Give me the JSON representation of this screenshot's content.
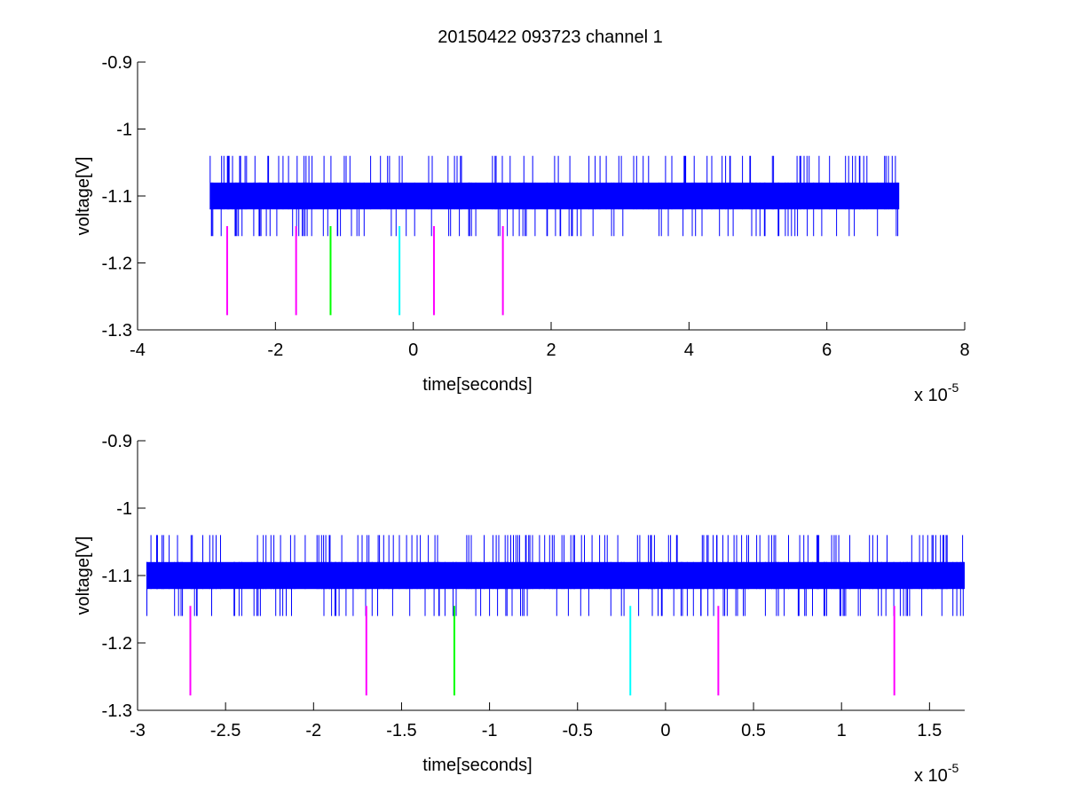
{
  "figure": {
    "title": "20150422 093723 channel 1"
  },
  "chart_data": [
    {
      "type": "line",
      "title": "20150422 093723 channel 1",
      "xlabel": "time[seconds]",
      "ylabel": "voltage[V]",
      "x_multiplier": "x 10",
      "x_exponent": "-5",
      "xlim": [
        -4,
        8
      ],
      "ylim": [
        -1.3,
        -0.9
      ],
      "xticks": [
        "-4",
        "-2",
        "0",
        "2",
        "4",
        "6",
        "8"
      ],
      "xtick_values": [
        -4,
        -2,
        0,
        2,
        4,
        6,
        8
      ],
      "yticks": [
        "-0.9",
        "-1",
        "-1.1",
        "-1.2",
        "-1.3"
      ],
      "ytick_values": [
        -0.9,
        -1.0,
        -1.1,
        -1.2,
        -1.3
      ],
      "grid": false,
      "signal": {
        "color": "#0000ff",
        "x_start": -2.95,
        "x_end": 7.05,
        "band": [
          -1.12,
          -1.08
        ],
        "spike_high": -1.04,
        "spike_low": -1.16
      },
      "markers": [
        {
          "x": -2.7,
          "y_top": -1.145,
          "y_bottom": -1.278,
          "color": "#ff00ff"
        },
        {
          "x": -1.7,
          "y_top": -1.145,
          "y_bottom": -1.278,
          "color": "#ff00ff"
        },
        {
          "x": -1.2,
          "y_top": -1.145,
          "y_bottom": -1.278,
          "color": "#00ff00"
        },
        {
          "x": -0.2,
          "y_top": -1.145,
          "y_bottom": -1.278,
          "color": "#00ffff"
        },
        {
          "x": 0.3,
          "y_top": -1.145,
          "y_bottom": -1.278,
          "color": "#ff00ff"
        },
        {
          "x": 1.3,
          "y_top": -1.145,
          "y_bottom": -1.278,
          "color": "#ff00ff"
        }
      ]
    },
    {
      "type": "line",
      "title": "",
      "xlabel": "time[seconds]",
      "ylabel": "voltage[V]",
      "x_multiplier": "x 10",
      "x_exponent": "-5",
      "xlim": [
        -3,
        1.7
      ],
      "ylim": [
        -1.3,
        -0.9
      ],
      "xticks": [
        "-3",
        "-2.5",
        "-2",
        "-1.5",
        "-1",
        "-0.5",
        "0",
        "0.5",
        "1",
        "1.5"
      ],
      "xtick_values": [
        -3,
        -2.5,
        -2,
        -1.5,
        -1,
        -0.5,
        0,
        0.5,
        1,
        1.5
      ],
      "yticks": [
        "-0.9",
        "-1",
        "-1.1",
        "-1.2",
        "-1.3"
      ],
      "ytick_values": [
        -0.9,
        -1.0,
        -1.1,
        -1.2,
        -1.3
      ],
      "grid": false,
      "signal": {
        "color": "#0000ff",
        "x_start": -2.95,
        "x_end": 1.7,
        "band": [
          -1.12,
          -1.08
        ],
        "spike_high": -1.04,
        "spike_low": -1.16
      },
      "markers": [
        {
          "x": -2.7,
          "y_top": -1.145,
          "y_bottom": -1.278,
          "color": "#ff00ff"
        },
        {
          "x": -1.7,
          "y_top": -1.145,
          "y_bottom": -1.278,
          "color": "#ff00ff"
        },
        {
          "x": -1.2,
          "y_top": -1.145,
          "y_bottom": -1.278,
          "color": "#00ff00"
        },
        {
          "x": -0.2,
          "y_top": -1.145,
          "y_bottom": -1.278,
          "color": "#00ffff"
        },
        {
          "x": 0.3,
          "y_top": -1.145,
          "y_bottom": -1.278,
          "color": "#ff00ff"
        },
        {
          "x": 1.3,
          "y_top": -1.145,
          "y_bottom": -1.278,
          "color": "#ff00ff"
        }
      ]
    }
  ]
}
